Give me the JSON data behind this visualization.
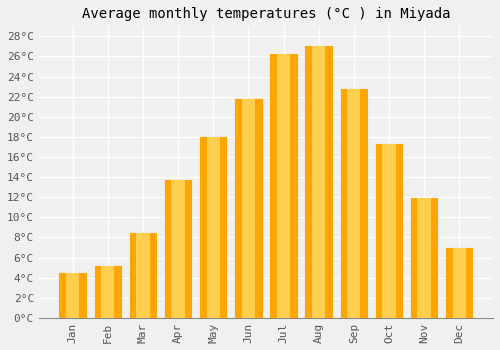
{
  "title": "Average monthly temperatures (°C ) in Miyada",
  "months": [
    "Jan",
    "Feb",
    "Mar",
    "Apr",
    "May",
    "Jun",
    "Jul",
    "Aug",
    "Sep",
    "Oct",
    "Nov",
    "Dec"
  ],
  "values": [
    4.5,
    5.2,
    8.4,
    13.7,
    18.0,
    21.8,
    26.2,
    27.0,
    22.8,
    17.3,
    11.9,
    7.0
  ],
  "bar_color": "#FFA500",
  "bar_edge_color": "#CC7700",
  "ylim": [
    0,
    29
  ],
  "yticks": [
    0,
    2,
    4,
    6,
    8,
    10,
    12,
    14,
    16,
    18,
    20,
    22,
    24,
    26,
    28
  ],
  "background_color": "#f0f0f0",
  "grid_color": "#ffffff",
  "title_fontsize": 10,
  "tick_fontsize": 8,
  "font_family": "monospace"
}
